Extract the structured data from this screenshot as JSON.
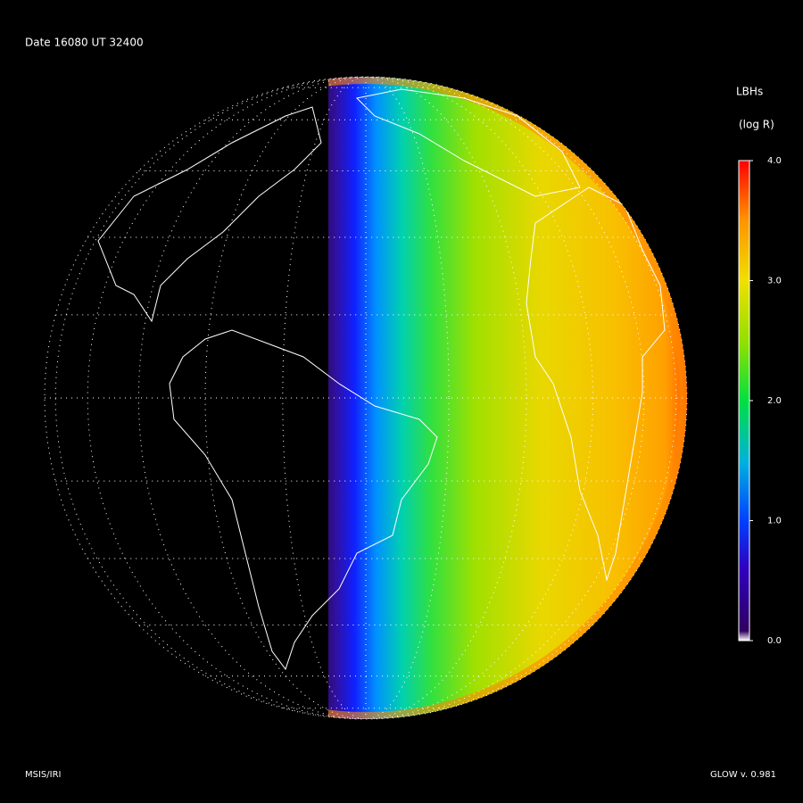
{
  "header": {
    "title": "Date 16080  UT 32400"
  },
  "colorbar": {
    "title": "LBHs",
    "unit": "(log R)",
    "ticks": [
      {
        "value": 0,
        "label": "0.0"
      },
      {
        "value": 1,
        "label": "1.0"
      },
      {
        "value": 2,
        "label": "2.0"
      },
      {
        "value": 3,
        "label": "3.0"
      },
      {
        "value": 4,
        "label": "4.0"
      }
    ]
  },
  "footer": {
    "left": "MSIS/IRI",
    "right": "GLOW v. 0.981"
  }
}
